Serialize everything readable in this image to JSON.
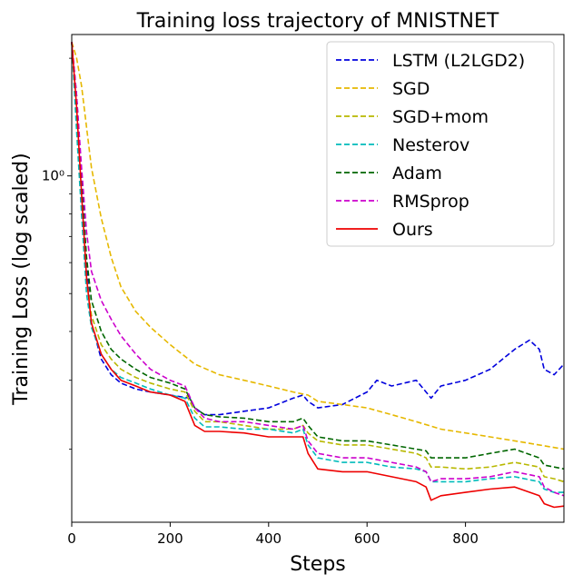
{
  "chart_data": {
    "type": "line",
    "title": "Training loss trajectory of MNISTNET",
    "xlabel": "Steps",
    "ylabel": "Training Loss (log scaled)",
    "xlim": [
      0,
      1000
    ],
    "ylim": [
      0.13,
      2.3
    ],
    "yscale": "log",
    "xticks": [
      0,
      200,
      400,
      600,
      800
    ],
    "xtick_labels": [
      "0",
      "200",
      "400",
      "600",
      "800"
    ],
    "yticks": [
      1.0
    ],
    "ytick_labels": [
      "10⁰"
    ],
    "legend_position": "top-right",
    "series": [
      {
        "name": "LSTM (L2LGD2)",
        "color": "#0000dd",
        "dash": "dashed",
        "x": [
          0,
          10,
          20,
          30,
          40,
          60,
          80,
          100,
          130,
          160,
          200,
          240,
          250,
          270,
          300,
          350,
          400,
          450,
          470,
          480,
          500,
          550,
          600,
          620,
          650,
          700,
          720,
          730,
          750,
          800,
          850,
          900,
          930,
          950,
          960,
          980,
          1000
        ],
        "y": [
          2.2,
          1.6,
          1.0,
          0.6,
          0.42,
          0.34,
          0.31,
          0.295,
          0.285,
          0.28,
          0.275,
          0.27,
          0.255,
          0.245,
          0.245,
          0.25,
          0.255,
          0.27,
          0.275,
          0.265,
          0.255,
          0.26,
          0.28,
          0.3,
          0.29,
          0.3,
          0.28,
          0.27,
          0.29,
          0.3,
          0.32,
          0.36,
          0.38,
          0.36,
          0.32,
          0.31,
          0.33
        ]
      },
      {
        "name": "SGD",
        "color": "#e6b800",
        "dash": "dashed",
        "x": [
          0,
          10,
          20,
          40,
          60,
          80,
          100,
          130,
          160,
          200,
          250,
          300,
          350,
          400,
          450,
          480,
          500,
          550,
          600,
          650,
          700,
          750,
          800,
          850,
          900,
          950,
          1000
        ],
        "y": [
          2.2,
          2.0,
          1.7,
          1.05,
          0.78,
          0.62,
          0.52,
          0.45,
          0.41,
          0.37,
          0.33,
          0.31,
          0.3,
          0.29,
          0.28,
          0.275,
          0.265,
          0.26,
          0.255,
          0.245,
          0.235,
          0.225,
          0.22,
          0.215,
          0.21,
          0.205,
          0.2
        ]
      },
      {
        "name": "SGD+mom",
        "color": "#b8b800",
        "dash": "dashed",
        "x": [
          0,
          10,
          20,
          30,
          40,
          60,
          80,
          100,
          130,
          160,
          200,
          230,
          250,
          270,
          300,
          350,
          400,
          450,
          470,
          480,
          500,
          550,
          600,
          650,
          700,
          720,
          730,
          750,
          800,
          850,
          900,
          950,
          960,
          980,
          1000
        ],
        "y": [
          2.2,
          1.4,
          0.85,
          0.55,
          0.44,
          0.37,
          0.34,
          0.32,
          0.305,
          0.295,
          0.285,
          0.28,
          0.25,
          0.235,
          0.235,
          0.23,
          0.225,
          0.225,
          0.23,
          0.22,
          0.21,
          0.205,
          0.205,
          0.2,
          0.195,
          0.19,
          0.18,
          0.18,
          0.178,
          0.18,
          0.185,
          0.18,
          0.17,
          0.168,
          0.165
        ]
      },
      {
        "name": "Nesterov",
        "color": "#00bbbb",
        "dash": "dashed",
        "x": [
          0,
          10,
          20,
          30,
          40,
          60,
          80,
          100,
          130,
          160,
          200,
          230,
          250,
          270,
          300,
          350,
          400,
          450,
          470,
          480,
          500,
          550,
          600,
          650,
          700,
          720,
          730,
          750,
          800,
          850,
          900,
          950,
          960,
          980,
          1000
        ],
        "y": [
          2.2,
          1.3,
          0.8,
          0.5,
          0.41,
          0.35,
          0.32,
          0.305,
          0.295,
          0.285,
          0.275,
          0.27,
          0.24,
          0.228,
          0.228,
          0.225,
          0.225,
          0.22,
          0.225,
          0.205,
          0.19,
          0.185,
          0.185,
          0.18,
          0.178,
          0.175,
          0.165,
          0.165,
          0.165,
          0.168,
          0.17,
          0.165,
          0.158,
          0.155,
          0.155
        ]
      },
      {
        "name": "Adam",
        "color": "#006600",
        "dash": "dashed",
        "x": [
          0,
          10,
          20,
          30,
          40,
          60,
          80,
          100,
          130,
          160,
          200,
          230,
          250,
          270,
          300,
          350,
          400,
          450,
          470,
          480,
          500,
          550,
          600,
          650,
          700,
          720,
          730,
          750,
          800,
          850,
          900,
          950,
          960,
          980,
          1000
        ],
        "y": [
          2.2,
          1.5,
          0.95,
          0.62,
          0.48,
          0.4,
          0.36,
          0.34,
          0.32,
          0.305,
          0.295,
          0.285,
          0.255,
          0.245,
          0.242,
          0.24,
          0.235,
          0.235,
          0.24,
          0.23,
          0.215,
          0.21,
          0.21,
          0.205,
          0.2,
          0.198,
          0.19,
          0.19,
          0.19,
          0.195,
          0.2,
          0.19,
          0.182,
          0.18,
          0.178
        ]
      },
      {
        "name": "RMSprop",
        "color": "#cc00cc",
        "dash": "dashed",
        "x": [
          0,
          10,
          20,
          30,
          40,
          60,
          80,
          100,
          130,
          160,
          200,
          230,
          250,
          270,
          300,
          350,
          400,
          450,
          470,
          480,
          500,
          550,
          600,
          650,
          700,
          720,
          730,
          750,
          800,
          850,
          900,
          950,
          960,
          980,
          1000
        ],
        "y": [
          2.2,
          1.6,
          1.05,
          0.72,
          0.57,
          0.48,
          0.43,
          0.39,
          0.35,
          0.32,
          0.3,
          0.29,
          0.255,
          0.24,
          0.235,
          0.235,
          0.23,
          0.225,
          0.23,
          0.21,
          0.195,
          0.19,
          0.19,
          0.185,
          0.18,
          0.175,
          0.165,
          0.168,
          0.168,
          0.17,
          0.175,
          0.17,
          0.16,
          0.155,
          0.152
        ]
      },
      {
        "name": "Ours",
        "color": "#ee0000",
        "dash": "solid",
        "x": [
          0,
          10,
          20,
          30,
          40,
          60,
          80,
          100,
          130,
          160,
          200,
          230,
          250,
          270,
          300,
          350,
          400,
          450,
          470,
          480,
          500,
          550,
          600,
          650,
          700,
          720,
          730,
          750,
          800,
          850,
          900,
          950,
          960,
          980,
          1000
        ],
        "y": [
          2.2,
          1.5,
          0.9,
          0.55,
          0.42,
          0.35,
          0.32,
          0.3,
          0.29,
          0.28,
          0.275,
          0.265,
          0.23,
          0.222,
          0.222,
          0.22,
          0.215,
          0.215,
          0.215,
          0.195,
          0.178,
          0.175,
          0.175,
          0.17,
          0.165,
          0.16,
          0.148,
          0.152,
          0.155,
          0.158,
          0.16,
          0.152,
          0.145,
          0.142,
          0.143
        ]
      }
    ]
  }
}
